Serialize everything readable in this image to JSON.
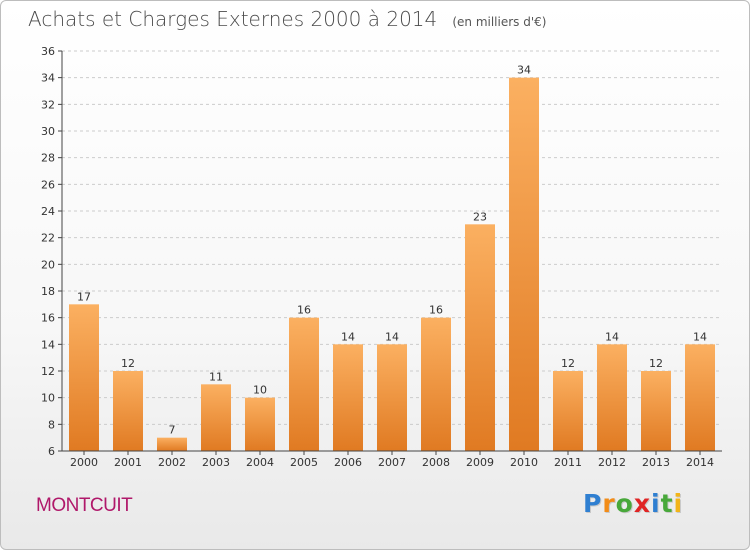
{
  "header": {
    "title": "Achats et Charges Externes 2000 à 2014",
    "subtitle": "(en milliers d'€)"
  },
  "footer": {
    "commune": "MONTCUIT",
    "brand": "Proxiti"
  },
  "brand_letters": [
    {
      "char": "P",
      "color": "#2f7fd1"
    },
    {
      "char": "r",
      "color": "#f28c18"
    },
    {
      "char": "o",
      "color": "#48a83a"
    },
    {
      "char": "x",
      "color": "#e02424"
    },
    {
      "char": "i",
      "color": "#2f7fd1"
    },
    {
      "char": "t",
      "color": "#48a83a"
    },
    {
      "char": "i",
      "color": "#f2b418"
    }
  ],
  "colors": {
    "bar_light": "#fbb061",
    "bar_dark": "#e07a22",
    "axis": "#444444",
    "grid": "#cccccc",
    "text": "#333333"
  },
  "chart_data": {
    "type": "bar",
    "title": "Achats et Charges Externes 2000 à 2014",
    "subtitle": "(en milliers d'€)",
    "categories": [
      "2000",
      "2001",
      "2002",
      "2003",
      "2004",
      "2005",
      "2006",
      "2007",
      "2008",
      "2009",
      "2010",
      "2011",
      "2012",
      "2013",
      "2014"
    ],
    "values": [
      17,
      12,
      7,
      11,
      10,
      16,
      14,
      14,
      16,
      23,
      34,
      12,
      14,
      12,
      14
    ],
    "ylim": [
      6,
      36
    ],
    "yticks": [
      6,
      8,
      10,
      12,
      14,
      16,
      18,
      20,
      22,
      24,
      26,
      28,
      30,
      32,
      34,
      36
    ],
    "grid": "horizontal dashed",
    "data_labels": true
  }
}
